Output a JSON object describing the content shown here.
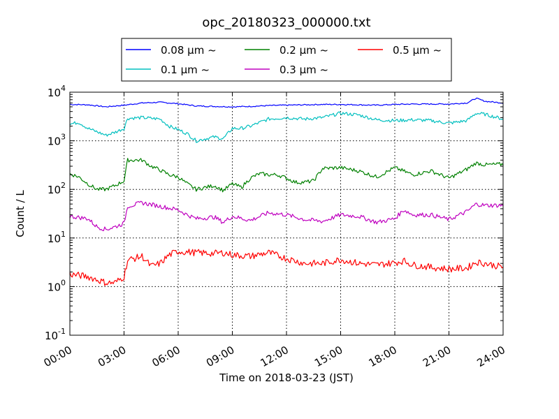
{
  "chart_data": {
    "type": "line",
    "title": "opc_20180323_000000.txt",
    "xlabel": "Time on 2018-03-23 (JST)",
    "ylabel": "Count / L",
    "yscale": "log",
    "ylim": [
      0.1,
      10000
    ],
    "xlim": [
      "00:00",
      "24:00"
    ],
    "x_unit": "hour",
    "x_ticks": [
      {
        "hour": 0,
        "label": "00:00"
      },
      {
        "hour": 3,
        "label": "03:00"
      },
      {
        "hour": 6,
        "label": "06:00"
      },
      {
        "hour": 9,
        "label": "09:00"
      },
      {
        "hour": 12,
        "label": "12:00"
      },
      {
        "hour": 15,
        "label": "15:00"
      },
      {
        "hour": 18,
        "label": "18:00"
      },
      {
        "hour": 21,
        "label": "21:00"
      },
      {
        "hour": 24,
        "label": "24:00"
      }
    ],
    "y_ticks": [
      {
        "value": 0.1,
        "base": "10",
        "exp": "-1"
      },
      {
        "value": 1,
        "base": "10",
        "exp": "0"
      },
      {
        "value": 10,
        "base": "10",
        "exp": "1"
      },
      {
        "value": 100,
        "base": "10",
        "exp": "2"
      },
      {
        "value": 1000,
        "base": "10",
        "exp": "3"
      },
      {
        "value": 10000,
        "base": "10",
        "exp": "4"
      }
    ],
    "grid": true,
    "legend_position": "top-center",
    "series": [
      {
        "name": "0.08 μm ~",
        "color": "#0000ff",
        "points": [
          [
            0,
            5600
          ],
          [
            1,
            5500
          ],
          [
            2,
            5000
          ],
          [
            3,
            5400
          ],
          [
            4,
            6000
          ],
          [
            5,
            6200
          ],
          [
            6,
            5800
          ],
          [
            7,
            5200
          ],
          [
            8,
            5100
          ],
          [
            9,
            5000
          ],
          [
            10,
            5100
          ],
          [
            11,
            5300
          ],
          [
            12,
            5400
          ],
          [
            13,
            5500
          ],
          [
            14,
            5600
          ],
          [
            15,
            5600
          ],
          [
            16,
            5500
          ],
          [
            17,
            5400
          ],
          [
            18,
            5600
          ],
          [
            19,
            5700
          ],
          [
            20,
            5700
          ],
          [
            21,
            5700
          ],
          [
            22,
            6000
          ],
          [
            22.5,
            7500
          ],
          [
            23,
            6500
          ],
          [
            24,
            6000
          ]
        ]
      },
      {
        "name": "0.1 μm ~",
        "color": "#00bfbf",
        "points": [
          [
            0,
            2200
          ],
          [
            0.5,
            2400
          ],
          [
            1,
            1800
          ],
          [
            2,
            1300
          ],
          [
            2.5,
            1500
          ],
          [
            3,
            1800
          ],
          [
            3.2,
            2900
          ],
          [
            4,
            3000
          ],
          [
            5,
            2800
          ],
          [
            5.5,
            2000
          ],
          [
            6,
            1700
          ],
          [
            6.5,
            1400
          ],
          [
            7,
            1000
          ],
          [
            7.5,
            1100
          ],
          [
            8,
            1200
          ],
          [
            8.5,
            1100
          ],
          [
            9,
            1800
          ],
          [
            9.5,
            1800
          ],
          [
            10,
            2000
          ],
          [
            11,
            2800
          ],
          [
            12,
            3000
          ],
          [
            13,
            2800
          ],
          [
            14,
            3000
          ],
          [
            15,
            3700
          ],
          [
            16,
            3400
          ],
          [
            17,
            2700
          ],
          [
            18,
            2600
          ],
          [
            19,
            2700
          ],
          [
            20,
            2600
          ],
          [
            21,
            2300
          ],
          [
            22,
            2600
          ],
          [
            22.5,
            3700
          ],
          [
            23,
            3500
          ],
          [
            24,
            2800
          ]
        ]
      },
      {
        "name": "0.2 μm ~",
        "color": "#008000",
        "points": [
          [
            0,
            210
          ],
          [
            0.5,
            180
          ],
          [
            1,
            130
          ],
          [
            1.5,
            100
          ],
          [
            2,
            100
          ],
          [
            2.5,
            120
          ],
          [
            3,
            150
          ],
          [
            3.2,
            400
          ],
          [
            4,
            400
          ],
          [
            4.5,
            300
          ],
          [
            5,
            250
          ],
          [
            5.5,
            200
          ],
          [
            6,
            180
          ],
          [
            6.5,
            130
          ],
          [
            7,
            100
          ],
          [
            7.5,
            110
          ],
          [
            8,
            120
          ],
          [
            8.5,
            95
          ],
          [
            9,
            130
          ],
          [
            9.5,
            110
          ],
          [
            10,
            170
          ],
          [
            10.5,
            210
          ],
          [
            11,
            200
          ],
          [
            11.5,
            200
          ],
          [
            12,
            170
          ],
          [
            12.5,
            140
          ],
          [
            13,
            140
          ],
          [
            13.5,
            150
          ],
          [
            14,
            270
          ],
          [
            15,
            280
          ],
          [
            16,
            240
          ],
          [
            17,
            180
          ],
          [
            18,
            280
          ],
          [
            19,
            200
          ],
          [
            20,
            240
          ],
          [
            21,
            170
          ],
          [
            22,
            260
          ],
          [
            22.5,
            350
          ],
          [
            23,
            320
          ],
          [
            24,
            330
          ]
        ]
      },
      {
        "name": "0.3 μm ~",
        "color": "#bf00bf",
        "points": [
          [
            0,
            28
          ],
          [
            1,
            25
          ],
          [
            1.5,
            17
          ],
          [
            2,
            15
          ],
          [
            2.5,
            17
          ],
          [
            3,
            20
          ],
          [
            3.2,
            45
          ],
          [
            4,
            53
          ],
          [
            5,
            45
          ],
          [
            6,
            38
          ],
          [
            6.5,
            30
          ],
          [
            7,
            25
          ],
          [
            8,
            27
          ],
          [
            8.5,
            21
          ],
          [
            9,
            28
          ],
          [
            10,
            23
          ],
          [
            11,
            33
          ],
          [
            12,
            30
          ],
          [
            13,
            24
          ],
          [
            14,
            22
          ],
          [
            15,
            30
          ],
          [
            16,
            28
          ],
          [
            17,
            21
          ],
          [
            18,
            25
          ],
          [
            18.5,
            38
          ],
          [
            19,
            30
          ],
          [
            20,
            30
          ],
          [
            21,
            24
          ],
          [
            22,
            35
          ],
          [
            22.5,
            50
          ],
          [
            23,
            47
          ],
          [
            24,
            47
          ]
        ]
      },
      {
        "name": "0.5 μm ~",
        "color": "#ff0000",
        "points": [
          [
            0,
            1.8
          ],
          [
            1,
            1.6
          ],
          [
            2,
            1.2
          ],
          [
            2.5,
            1.2
          ],
          [
            3,
            1.6
          ],
          [
            3.2,
            3.5
          ],
          [
            4,
            4.2
          ],
          [
            4.5,
            2.6
          ],
          [
            5,
            3
          ],
          [
            5.5,
            4.5
          ],
          [
            6,
            5.3
          ],
          [
            7,
            5
          ],
          [
            8,
            4.8
          ],
          [
            8.5,
            5
          ],
          [
            9,
            4.5
          ],
          [
            10,
            4.2
          ],
          [
            11,
            5
          ],
          [
            12,
            3.8
          ],
          [
            13,
            3
          ],
          [
            14,
            3
          ],
          [
            15,
            3.6
          ],
          [
            16,
            3
          ],
          [
            17,
            2.8
          ],
          [
            18,
            3.1
          ],
          [
            18.5,
            3.4
          ],
          [
            19,
            2.8
          ],
          [
            20,
            2.5
          ],
          [
            21,
            2.3
          ],
          [
            22,
            2.4
          ],
          [
            22.5,
            3.2
          ],
          [
            23,
            3
          ],
          [
            24,
            2.5
          ]
        ]
      }
    ]
  }
}
